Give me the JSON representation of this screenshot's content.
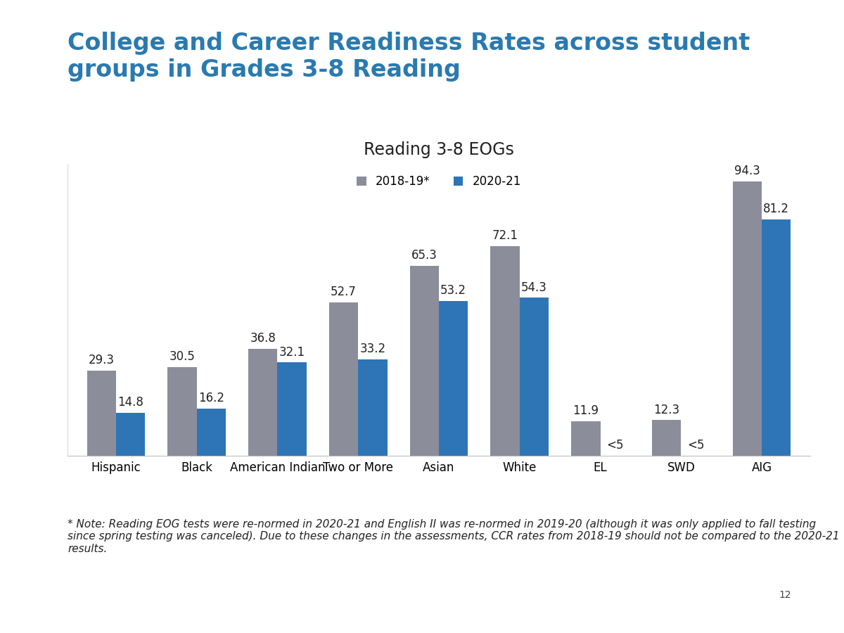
{
  "chart_data": {
    "type": "bar",
    "title": "College and Career Readiness Rates across student groups in Grades 3-8 Reading",
    "subtitle": "Reading 3-8 EOGs",
    "categories": [
      "Hispanic",
      "Black",
      "American Indian",
      "Two or More",
      "Asian",
      "White",
      "EL",
      "SWD",
      "AIG"
    ],
    "series": [
      {
        "name": "2018-19*",
        "color": "#8b8d9a",
        "values": [
          29.3,
          30.5,
          36.8,
          52.7,
          65.3,
          72.1,
          11.9,
          12.3,
          94.3
        ]
      },
      {
        "name": "2020-21",
        "color": "#2e75b6",
        "values": [
          14.8,
          16.2,
          32.1,
          33.2,
          53.2,
          54.3,
          null,
          null,
          81.2
        ],
        "value_labels": [
          "14.8",
          "16.2",
          "32.1",
          "33.2",
          "53.2",
          "54.3",
          "<5",
          "<5",
          "81.2"
        ]
      }
    ],
    "ylim": [
      0,
      100
    ],
    "yticks": [],
    "grid": false,
    "legend": "upper center",
    "data_labels": true,
    "tick_labels": "x",
    "note": "* Note: Reading EOG tests were re-normed in 2020-21 and English II was re-normed in 2019-20 (although it was only applied to fall testing since spring testing was canceled). Due to these changes in the assessments, CCR rates from 2018-19 should not be compared to the 2020-21 results.",
    "page": "12"
  }
}
